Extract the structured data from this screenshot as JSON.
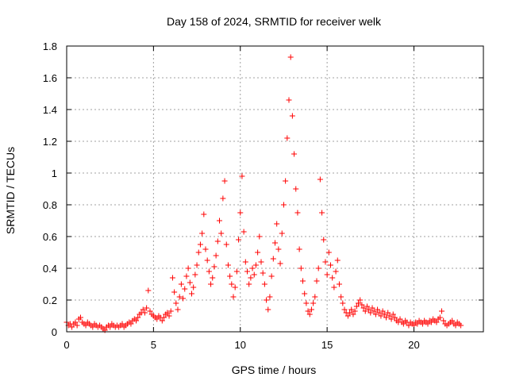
{
  "chart_data": {
    "type": "scatter",
    "title": "Day 158 of 2024, SRMTID for receiver welk",
    "xlabel": "GPS time / hours",
    "ylabel": "SRMTID / TECUs",
    "xlim": [
      0,
      24
    ],
    "ylim": [
      0,
      1.8
    ],
    "xticks": [
      "0",
      "5",
      "10",
      "15",
      "20"
    ],
    "yticks": [
      "0",
      "0.2",
      "0.4",
      "0.6",
      "0.8",
      "1",
      "1.2",
      "1.4",
      "1.6",
      "1.8"
    ],
    "grid": true,
    "marker": "+",
    "color": "#ff0000",
    "series": [
      {
        "name": "SRMTID",
        "points": [
          [
            0.0,
            0.06
          ],
          [
            0.1,
            0.04
          ],
          [
            0.2,
            0.05
          ],
          [
            0.3,
            0.03
          ],
          [
            0.4,
            0.05
          ],
          [
            0.5,
            0.06
          ],
          [
            0.6,
            0.04
          ],
          [
            0.7,
            0.08
          ],
          [
            0.8,
            0.09
          ],
          [
            0.9,
            0.06
          ],
          [
            1.0,
            0.05
          ],
          [
            1.1,
            0.04
          ],
          [
            1.2,
            0.06
          ],
          [
            1.3,
            0.05
          ],
          [
            1.4,
            0.04
          ],
          [
            1.5,
            0.03
          ],
          [
            1.6,
            0.05
          ],
          [
            1.7,
            0.04
          ],
          [
            1.8,
            0.03
          ],
          [
            1.9,
            0.04
          ],
          [
            2.0,
            0.03
          ],
          [
            2.1,
            0.02
          ],
          [
            2.2,
            0.01
          ],
          [
            2.3,
            0.03
          ],
          [
            2.4,
            0.04
          ],
          [
            2.5,
            0.03
          ],
          [
            2.6,
            0.05
          ],
          [
            2.7,
            0.04
          ],
          [
            2.8,
            0.03
          ],
          [
            2.9,
            0.04
          ],
          [
            3.0,
            0.03
          ],
          [
            3.1,
            0.04
          ],
          [
            3.2,
            0.05
          ],
          [
            3.3,
            0.03
          ],
          [
            3.4,
            0.04
          ],
          [
            3.5,
            0.05
          ],
          [
            3.6,
            0.06
          ],
          [
            3.7,
            0.05
          ],
          [
            3.8,
            0.07
          ],
          [
            3.9,
            0.08
          ],
          [
            4.0,
            0.07
          ],
          [
            4.1,
            0.09
          ],
          [
            4.2,
            0.11
          ],
          [
            4.3,
            0.12
          ],
          [
            4.4,
            0.14
          ],
          [
            4.5,
            0.12
          ],
          [
            4.6,
            0.15
          ],
          [
            4.7,
            0.26
          ],
          [
            4.8,
            0.13
          ],
          [
            4.9,
            0.11
          ],
          [
            5.0,
            0.1
          ],
          [
            5.1,
            0.09
          ],
          [
            5.2,
            0.08
          ],
          [
            5.3,
            0.1
          ],
          [
            5.4,
            0.09
          ],
          [
            5.5,
            0.07
          ],
          [
            5.6,
            0.09
          ],
          [
            5.7,
            0.11
          ],
          [
            5.8,
            0.12
          ],
          [
            5.9,
            0.1
          ],
          [
            6.0,
            0.13
          ],
          [
            6.1,
            0.34
          ],
          [
            6.2,
            0.25
          ],
          [
            6.3,
            0.18
          ],
          [
            6.4,
            0.14
          ],
          [
            6.5,
            0.22
          ],
          [
            6.6,
            0.3
          ],
          [
            6.7,
            0.21
          ],
          [
            6.8,
            0.27
          ],
          [
            6.9,
            0.35
          ],
          [
            7.0,
            0.4
          ],
          [
            7.1,
            0.31
          ],
          [
            7.2,
            0.24
          ],
          [
            7.3,
            0.28
          ],
          [
            7.4,
            0.36
          ],
          [
            7.5,
            0.42
          ],
          [
            7.6,
            0.5
          ],
          [
            7.7,
            0.55
          ],
          [
            7.8,
            0.62
          ],
          [
            7.9,
            0.74
          ],
          [
            8.0,
            0.52
          ],
          [
            8.1,
            0.45
          ],
          [
            8.2,
            0.38
          ],
          [
            8.3,
            0.3
          ],
          [
            8.4,
            0.34
          ],
          [
            8.5,
            0.41
          ],
          [
            8.6,
            0.48
          ],
          [
            8.7,
            0.57
          ],
          [
            8.8,
            0.7
          ],
          [
            8.9,
            0.62
          ],
          [
            9.0,
            0.84
          ],
          [
            9.1,
            0.95
          ],
          [
            9.2,
            0.55
          ],
          [
            9.3,
            0.42
          ],
          [
            9.4,
            0.35
          ],
          [
            9.5,
            0.3
          ],
          [
            9.6,
            0.22
          ],
          [
            9.7,
            0.28
          ],
          [
            9.8,
            0.38
          ],
          [
            9.9,
            0.58
          ],
          [
            10.0,
            0.75
          ],
          [
            10.1,
            0.98
          ],
          [
            10.2,
            0.63
          ],
          [
            10.3,
            0.44
          ],
          [
            10.4,
            0.38
          ],
          [
            10.5,
            0.3
          ],
          [
            10.6,
            0.34
          ],
          [
            10.7,
            0.4
          ],
          [
            10.8,
            0.36
          ],
          [
            10.9,
            0.42
          ],
          [
            11.0,
            0.5
          ],
          [
            11.1,
            0.6
          ],
          [
            11.2,
            0.44
          ],
          [
            11.3,
            0.37
          ],
          [
            11.4,
            0.3
          ],
          [
            11.5,
            0.2
          ],
          [
            11.6,
            0.14
          ],
          [
            11.7,
            0.22
          ],
          [
            11.8,
            0.35
          ],
          [
            11.9,
            0.46
          ],
          [
            12.0,
            0.56
          ],
          [
            12.1,
            0.68
          ],
          [
            12.2,
            0.52
          ],
          [
            12.3,
            0.43
          ],
          [
            12.4,
            0.62
          ],
          [
            12.5,
            0.8
          ],
          [
            12.6,
            0.95
          ],
          [
            12.7,
            1.22
          ],
          [
            12.8,
            1.46
          ],
          [
            12.9,
            1.73
          ],
          [
            13.0,
            1.36
          ],
          [
            13.1,
            1.12
          ],
          [
            13.2,
            0.9
          ],
          [
            13.3,
            0.75
          ],
          [
            13.4,
            0.52
          ],
          [
            13.5,
            0.4
          ],
          [
            13.6,
            0.32
          ],
          [
            13.7,
            0.24
          ],
          [
            13.8,
            0.18
          ],
          [
            13.9,
            0.13
          ],
          [
            14.0,
            0.11
          ],
          [
            14.1,
            0.14
          ],
          [
            14.2,
            0.18
          ],
          [
            14.3,
            0.22
          ],
          [
            14.4,
            0.32
          ],
          [
            14.5,
            0.4
          ],
          [
            14.6,
            0.96
          ],
          [
            14.7,
            0.75
          ],
          [
            14.8,
            0.58
          ],
          [
            14.9,
            0.44
          ],
          [
            15.0,
            0.36
          ],
          [
            15.1,
            0.5
          ],
          [
            15.2,
            0.42
          ],
          [
            15.3,
            0.34
          ],
          [
            15.4,
            0.28
          ],
          [
            15.5,
            0.38
          ],
          [
            15.6,
            0.45
          ],
          [
            15.7,
            0.3
          ],
          [
            15.8,
            0.22
          ],
          [
            15.9,
            0.18
          ],
          [
            16.0,
            0.14
          ],
          [
            16.1,
            0.12
          ],
          [
            16.2,
            0.1
          ],
          [
            16.3,
            0.12
          ],
          [
            16.4,
            0.14
          ],
          [
            16.5,
            0.11
          ],
          [
            16.6,
            0.13
          ],
          [
            16.7,
            0.16
          ],
          [
            16.8,
            0.18
          ],
          [
            16.9,
            0.2
          ],
          [
            17.0,
            0.17
          ],
          [
            17.1,
            0.15
          ],
          [
            17.2,
            0.13
          ],
          [
            17.3,
            0.16
          ],
          [
            17.4,
            0.14
          ],
          [
            17.5,
            0.12
          ],
          [
            17.6,
            0.15
          ],
          [
            17.7,
            0.13
          ],
          [
            17.8,
            0.11
          ],
          [
            17.9,
            0.14
          ],
          [
            18.0,
            0.12
          ],
          [
            18.1,
            0.1
          ],
          [
            18.2,
            0.13
          ],
          [
            18.3,
            0.11
          ],
          [
            18.4,
            0.09
          ],
          [
            18.5,
            0.12
          ],
          [
            18.6,
            0.1
          ],
          [
            18.7,
            0.08
          ],
          [
            18.8,
            0.11
          ],
          [
            18.9,
            0.09
          ],
          [
            19.0,
            0.07
          ],
          [
            19.1,
            0.06
          ],
          [
            19.2,
            0.08
          ],
          [
            19.3,
            0.06
          ],
          [
            19.4,
            0.05
          ],
          [
            19.5,
            0.07
          ],
          [
            19.6,
            0.06
          ],
          [
            19.7,
            0.04
          ],
          [
            19.8,
            0.06
          ],
          [
            19.9,
            0.05
          ],
          [
            20.0,
            0.04
          ],
          [
            20.1,
            0.06
          ],
          [
            20.2,
            0.05
          ],
          [
            20.3,
            0.07
          ],
          [
            20.4,
            0.06
          ],
          [
            20.5,
            0.05
          ],
          [
            20.6,
            0.07
          ],
          [
            20.7,
            0.06
          ],
          [
            20.8,
            0.05
          ],
          [
            20.9,
            0.07
          ],
          [
            21.0,
            0.06
          ],
          [
            21.1,
            0.08
          ],
          [
            21.2,
            0.07
          ],
          [
            21.3,
            0.06
          ],
          [
            21.4,
            0.08
          ],
          [
            21.5,
            0.09
          ],
          [
            21.6,
            0.13
          ],
          [
            21.7,
            0.07
          ],
          [
            21.8,
            0.05
          ],
          [
            21.9,
            0.04
          ],
          [
            22.0,
            0.05
          ],
          [
            22.1,
            0.06
          ],
          [
            22.2,
            0.07
          ],
          [
            22.3,
            0.05
          ],
          [
            22.4,
            0.04
          ],
          [
            22.5,
            0.06
          ],
          [
            22.6,
            0.05
          ],
          [
            22.7,
            0.04
          ]
        ]
      }
    ]
  }
}
